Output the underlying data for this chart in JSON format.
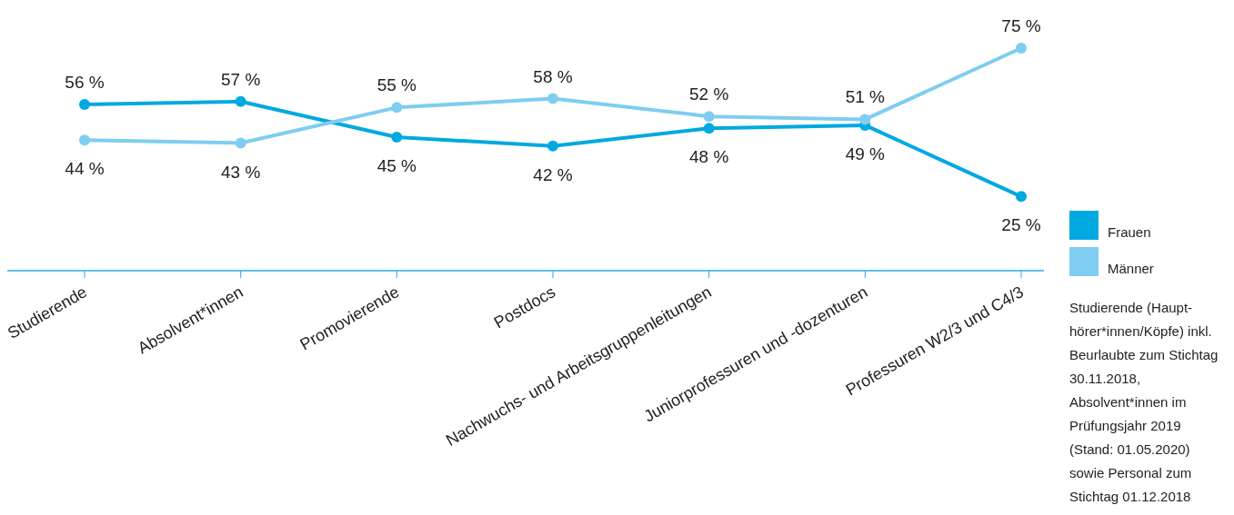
{
  "chart_data": {
    "type": "line",
    "categories": [
      "Studierende",
      "Absolvent*innen",
      "Promovierende",
      "Postdocs",
      "Nachwuchs- und Arbeitsgruppenleitungen",
      "Juniorprofessuren und -dozenturen",
      "Professuren W2/3 und C4/3"
    ],
    "series": [
      {
        "name": "Frauen",
        "color": "#00a9e0",
        "values": [
          56,
          57,
          45,
          42,
          48,
          49,
          25
        ],
        "value_labels": [
          "56 %",
          "57 %",
          "45 %",
          "42 %",
          "48 %",
          "49 %",
          "25 %"
        ]
      },
      {
        "name": "Männer",
        "color": "#7fcdf0",
        "values": [
          44,
          43,
          55,
          58,
          52,
          51,
          75
        ],
        "value_labels": [
          "44 %",
          "43 %",
          "55 %",
          "58 %",
          "52 %",
          "51 %",
          "75 %"
        ]
      }
    ],
    "marker": "circle",
    "line_style": "solid",
    "legend": "right",
    "annotations": [
      "Studierende (Haupt-hörer*innen/Köpfe) inkl. Beurlaubte zum Stichtag 30.11.2018, Absolvent*innen im Prüfungsjahr 2019 (Stand: 01.05.2020) sowie Personal zum Stichtag 01.12.2018"
    ]
  }
}
